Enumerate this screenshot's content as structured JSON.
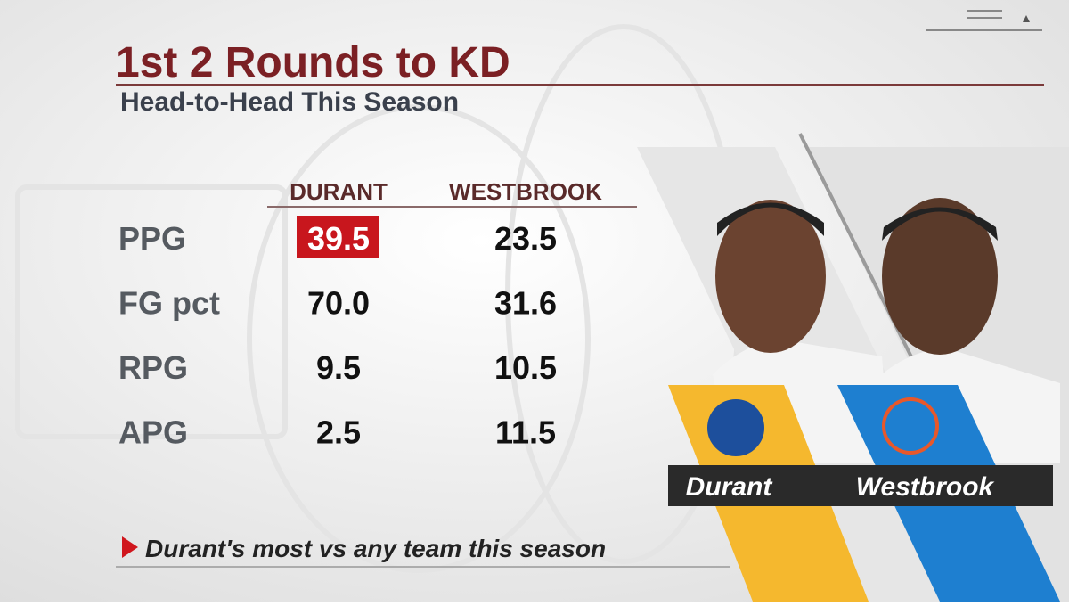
{
  "header": {
    "title": "1st 2 Rounds to KD",
    "subtitle": "Head-to-Head This Season"
  },
  "table": {
    "columns": [
      "DURANT",
      "WESTBROOK"
    ],
    "rows": [
      [
        "PPG",
        "39.5",
        "23.5"
      ],
      [
        "FG pct",
        "70.0",
        "31.6"
      ],
      [
        "RPG",
        "9.5",
        "10.5"
      ],
      [
        "APG",
        "2.5",
        "11.5"
      ]
    ]
  },
  "footnote": "Durant's most vs any team this season",
  "players": [
    "Durant",
    "Westbrook"
  ]
}
